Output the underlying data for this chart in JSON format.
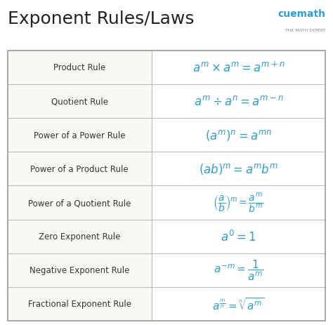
{
  "title": "Exponent Rules/Laws",
  "title_color": "#222222",
  "title_fontsize": 18,
  "bg_color": "#ffffff",
  "left_col_color": "#faf8f2",
  "right_col_color": "#ffffff",
  "rule_color": "#2b9fd8",
  "rule_name_color": "#333333",
  "rows": [
    {
      "name": "Product Rule",
      "formula": "$a^m \\times a^m = a^{m+n}$",
      "formula_fs": 12
    },
    {
      "name": "Quotient Rule",
      "formula": "$a^m \\div a^n = a^{m-n}$",
      "formula_fs": 12
    },
    {
      "name": "Power of a Power Rule",
      "formula": "$(a^m)^n = a^{mn}$",
      "formula_fs": 12
    },
    {
      "name": "Power of a Product Rule",
      "formula": "$(ab)^m = a^m b^m$",
      "formula_fs": 12
    },
    {
      "name": "Power of a Quotient Rule",
      "formula": "$\\left(\\dfrac{a}{b}\\right)^{\\!m} = \\dfrac{a^m}{b^m}$",
      "formula_fs": 10
    },
    {
      "name": "Zero Exponent Rule",
      "formula": "$a^0 = 1$",
      "formula_fs": 12
    },
    {
      "name": "Negative Exponent Rule",
      "formula": "$a^{-m} = \\dfrac{1}{a^m}$",
      "formula_fs": 11
    },
    {
      "name": "Fractional Exponent Rule",
      "formula": "$a^{\\frac{m}{n}} = \\sqrt[n]{a^m}$",
      "formula_fs": 11
    }
  ],
  "cuemath_text": "cuemath",
  "cuemath_sub": "THE MATH EXPERT",
  "cuemath_color": "#2b9fd8",
  "sub_color": "#888888"
}
